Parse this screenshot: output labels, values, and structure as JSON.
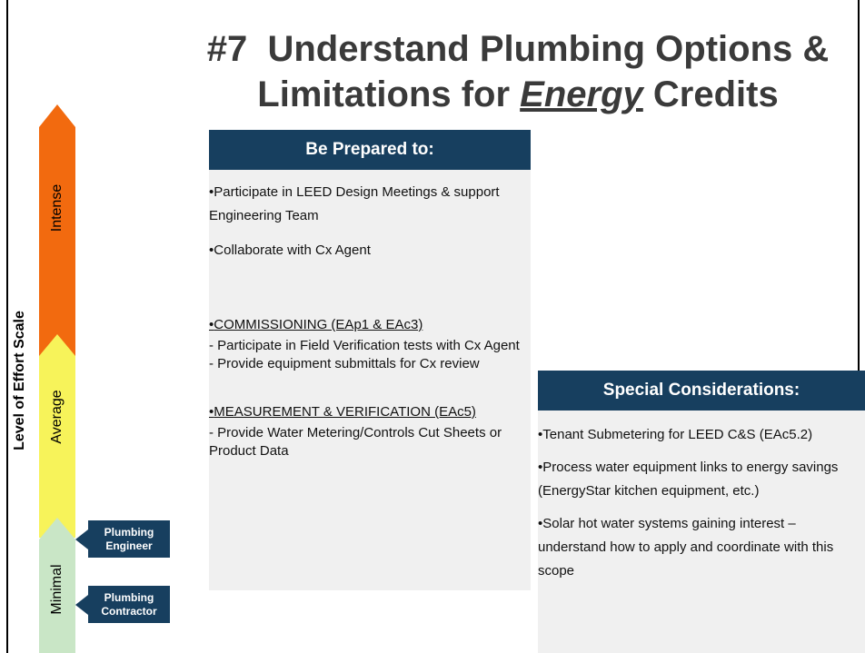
{
  "title": {
    "line1": "#7  Understand Plumbing Options &",
    "line2_start": "Limitations for ",
    "line2_emphasis": "Energy",
    "line2_end": " Credits"
  },
  "scale": {
    "label": "Level of Effort Scale",
    "levels": [
      "Intense",
      "Average",
      "Minimal"
    ]
  },
  "roles": [
    "Plumbing Engineer",
    "Plumbing Contractor"
  ],
  "prepared": {
    "header": "Be Prepared to:",
    "items": [
      {
        "text": "Participate in LEED Design Meetings & support Engineering Team",
        "details": []
      },
      {
        "text": "Collaborate with Cx Agent",
        "details": []
      },
      {
        "text": "COMMISSIONING (EAp1 & EAc3)",
        "details": [
          "- Participate in Field Verification tests with Cx Agent",
          "- Provide equipment submittals for Cx review"
        ]
      },
      {
        "text": "MEASUREMENT & VERIFICATION (EAc5)",
        "details": [
          "- Provide Water Metering/Controls Cut Sheets or Product Data"
        ]
      }
    ]
  },
  "special": {
    "header": "Special Considerations:",
    "items": [
      "Tenant Submetering for LEED C&S (EAc5.2)",
      "Process water equipment links to energy savings (EnergyStar kitchen equipment, etc.)",
      "Solar hot water systems gaining interest – understand how to apply and coordinate with this scope"
    ]
  }
}
